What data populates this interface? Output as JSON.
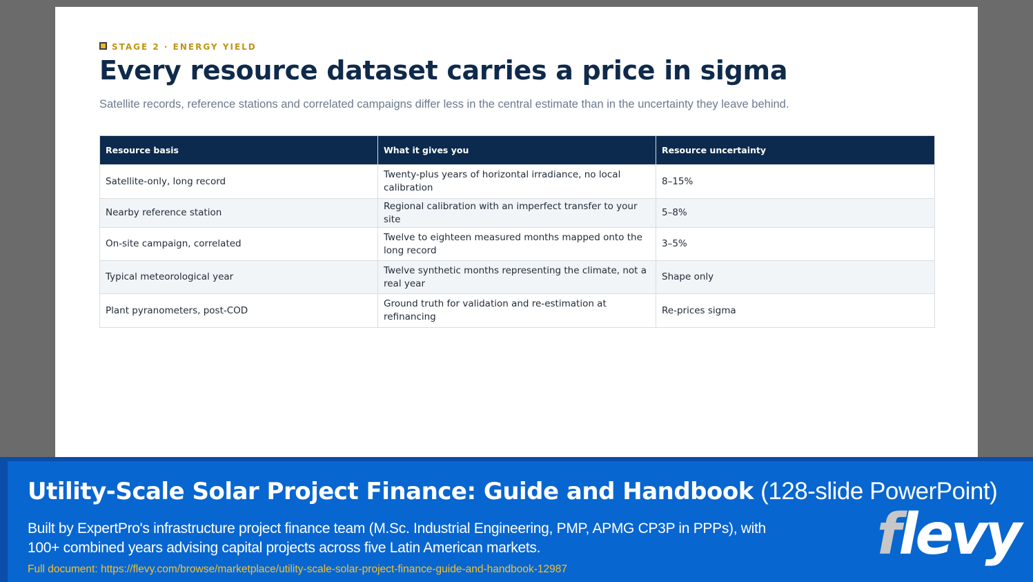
{
  "slide": {
    "eyebrow": "STAGE 2 · ENERGY YIELD",
    "title": "Every resource dataset carries a price in sigma",
    "subtitle": "Satellite records, reference stations and correlated campaigns differ less in the central estimate than in the uncertainty they leave behind.",
    "table": {
      "headers": [
        "Resource basis",
        "What it gives you",
        "Resource uncertainty"
      ],
      "rows": [
        [
          "Satellite-only, long record",
          "Twenty-plus years of horizontal irradiance, no local calibration",
          "8–15%"
        ],
        [
          "Nearby reference station",
          "Regional calibration with an imperfect transfer to your site",
          "5–8%"
        ],
        [
          "On-site campaign, correlated",
          "Twelve to eighteen measured months mapped onto the long record",
          "3–5%"
        ],
        [
          "Typical meteorological year",
          "Twelve synthetic months representing the climate, not a real year",
          "Shape only"
        ],
        [
          "Plant pyranometers, post-COD",
          "Ground truth for validation and re-estimation at refinancing",
          "Re-prices sigma"
        ]
      ]
    }
  },
  "banner": {
    "title_bold": "Utility-Scale Solar Project Finance: Guide and Handbook",
    "title_light": "(128-slide PowerPoint)",
    "desc_line1": "Built by ExpertPro's infrastructure project finance team (M.Sc. Industrial Engineering, PMP, APMG CP3P in PPPs), with",
    "desc_line2": "100+ combined years advising capital projects across five Latin American markets.",
    "link": "Full document: https://flevy.com/browse/marketplace/utility-scale-solar-project-finance-guide-and-handbook-12987",
    "brand_first": "f",
    "brand_rest": "levy"
  },
  "colors": {
    "header_navy": "#0c2a4d",
    "title_navy": "#0f2a4a",
    "eyebrow_gold": "#c09315",
    "banner_blue": "#0866d0",
    "link_yellow": "#f2c230"
  }
}
